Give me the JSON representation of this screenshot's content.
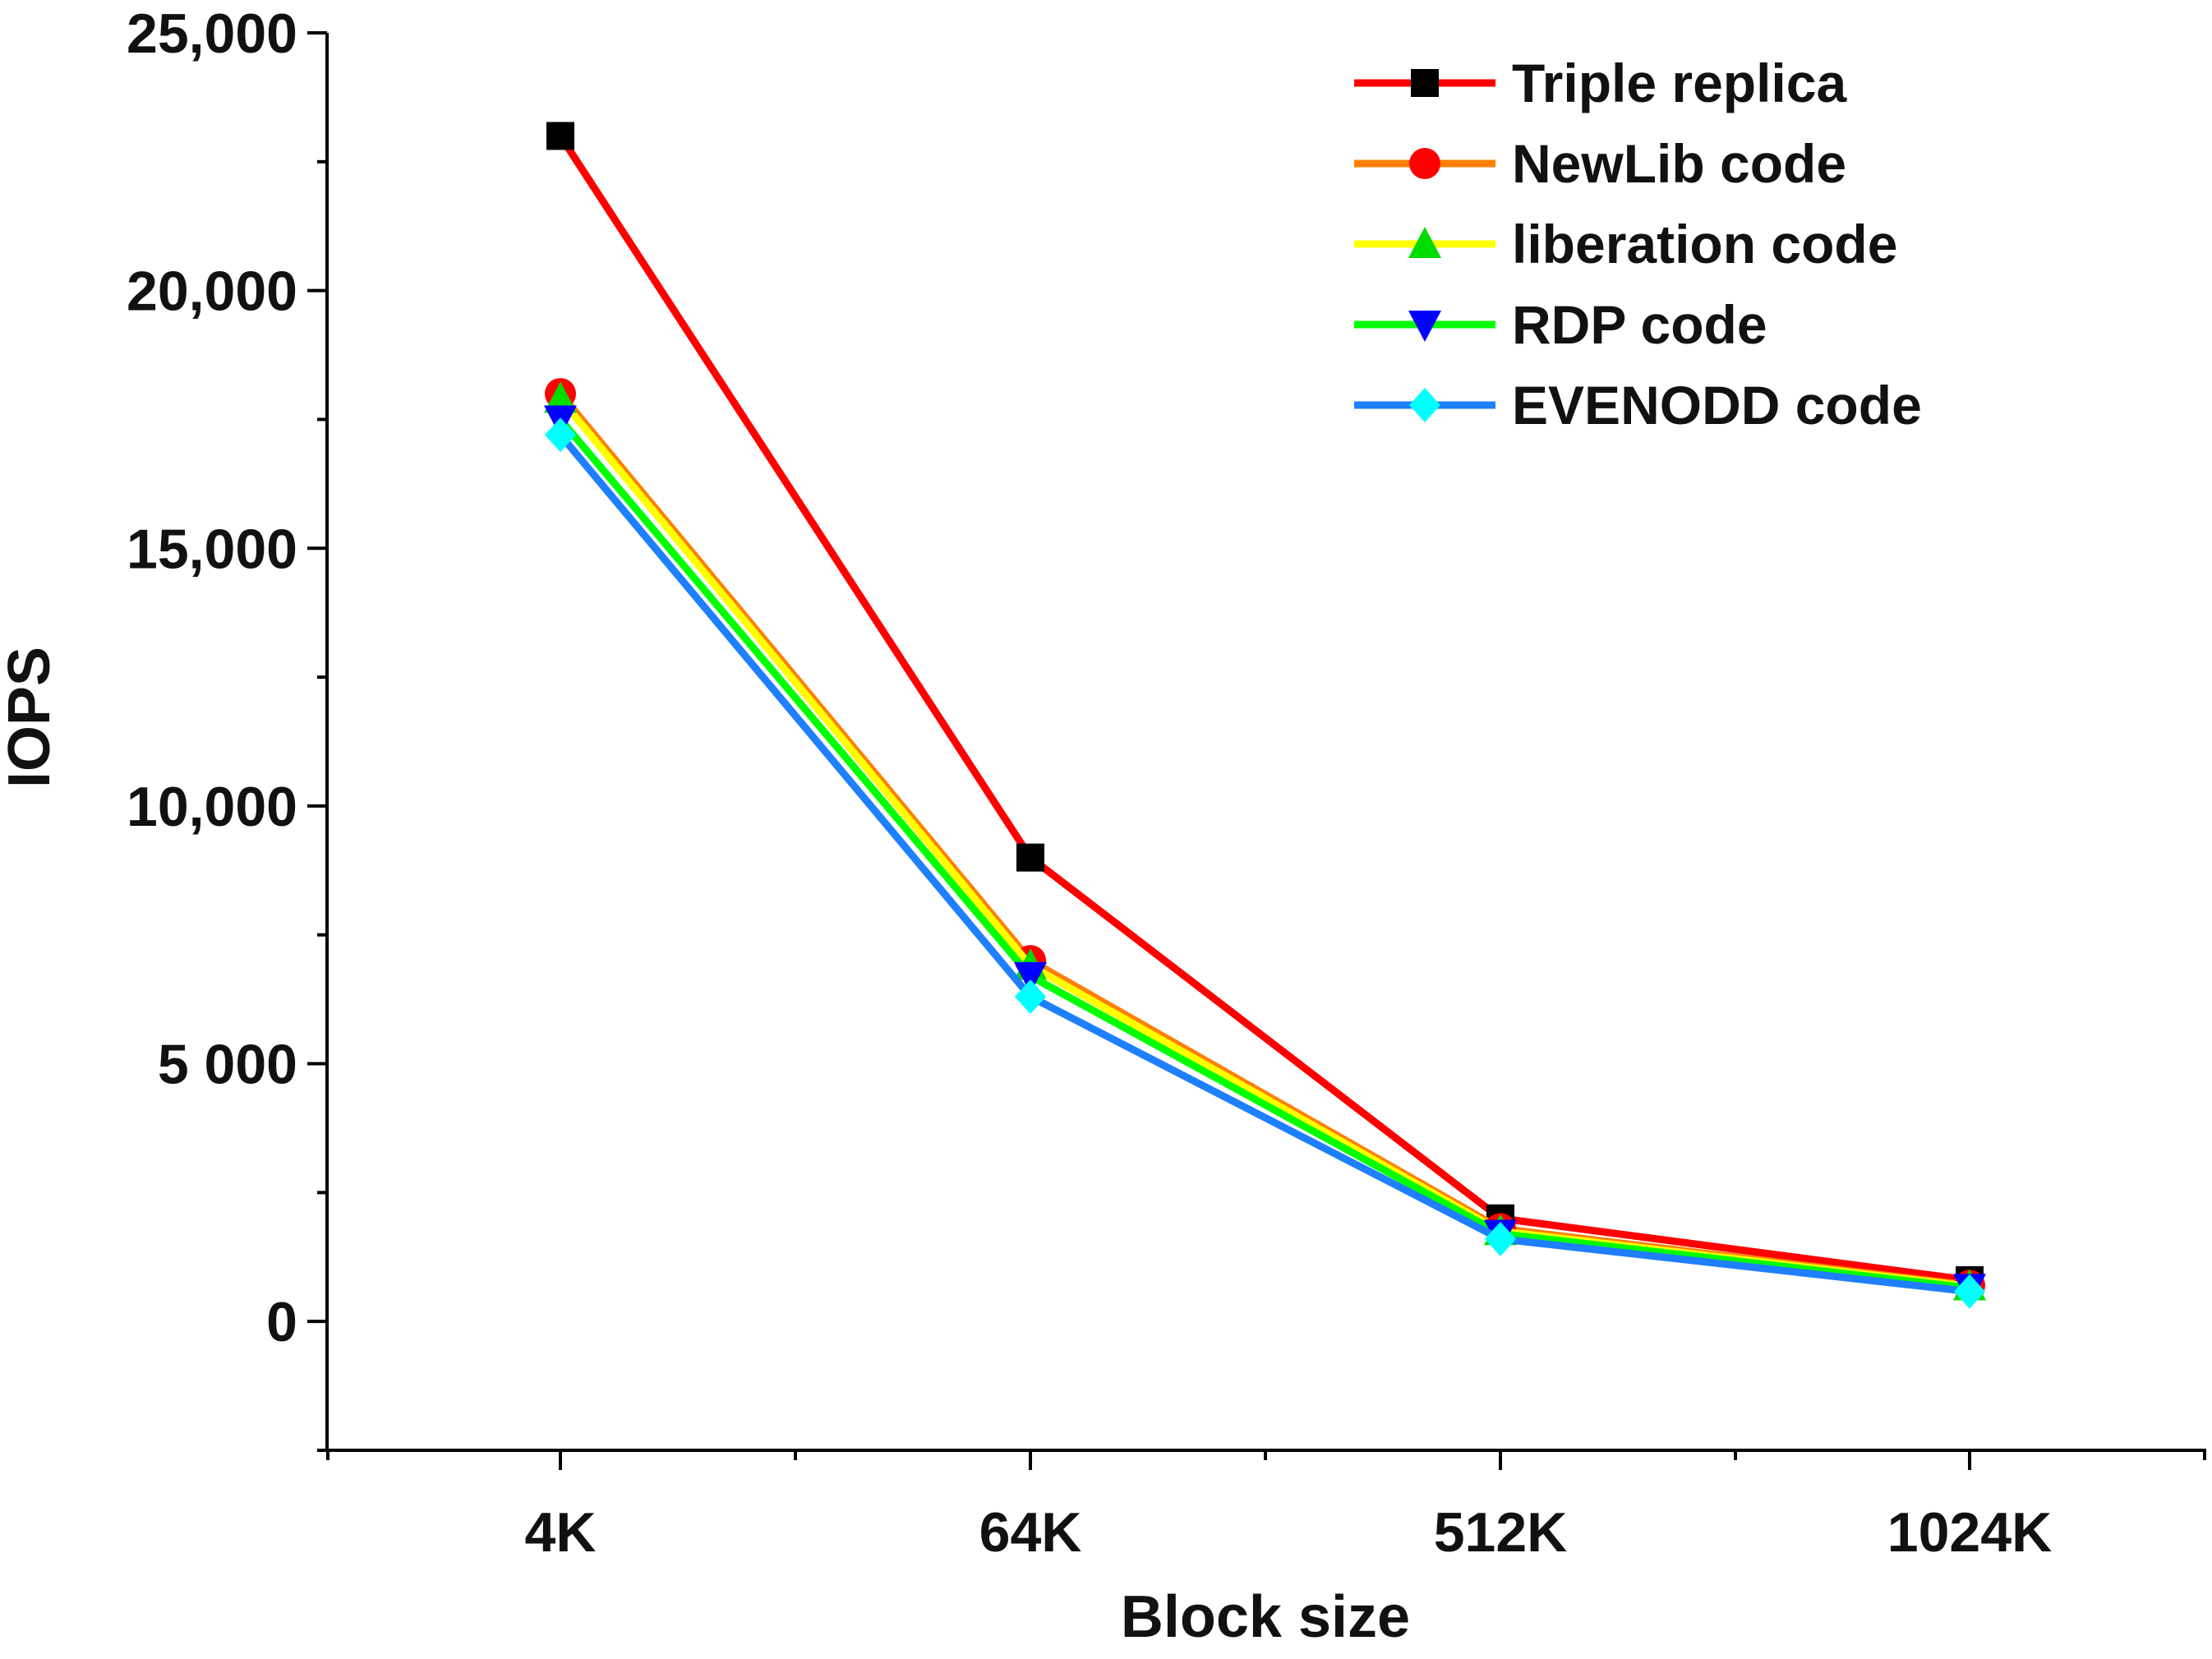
{
  "chart_data": {
    "type": "line",
    "title": "",
    "xlabel": "Block size",
    "ylabel": "IOPS",
    "categories": [
      "4K",
      "64K",
      "512K",
      "1024K"
    ],
    "ylim": [
      -2500,
      25000
    ],
    "yticks": [
      {
        "value": 0,
        "label": "0"
      },
      {
        "value": 5000,
        "label": "5 000"
      },
      {
        "value": 10000,
        "label": "10,000"
      },
      {
        "value": 15000,
        "label": "15,000"
      },
      {
        "value": 20000,
        "label": "20,000"
      },
      {
        "value": 25000,
        "label": "25,000"
      }
    ],
    "grid": false,
    "legend_position": "top-right",
    "series": [
      {
        "name": "Triple replica",
        "color": "#ff0000",
        "marker": "square",
        "marker_color": "#000000",
        "values": [
          23000,
          9000,
          2000,
          800
        ]
      },
      {
        "name": "NewLib code",
        "color": "#ff7f00",
        "marker": "circle",
        "marker_color": "#ff0000",
        "values": [
          18000,
          7000,
          1800,
          700
        ]
      },
      {
        "name": "liberation code",
        "color": "#ffff00",
        "marker": "triangle-up",
        "marker_color": "#00dd00",
        "values": [
          17900,
          6900,
          1750,
          680
        ]
      },
      {
        "name": "RDP code",
        "color": "#00ff00",
        "marker": "triangle-down",
        "marker_color": "#0000ff",
        "values": [
          17500,
          6700,
          1700,
          650
        ]
      },
      {
        "name": "EVENODD code",
        "color": "#1e7fff",
        "marker": "diamond",
        "marker_color": "#00ffff",
        "values": [
          17200,
          6300,
          1600,
          580
        ]
      }
    ]
  }
}
